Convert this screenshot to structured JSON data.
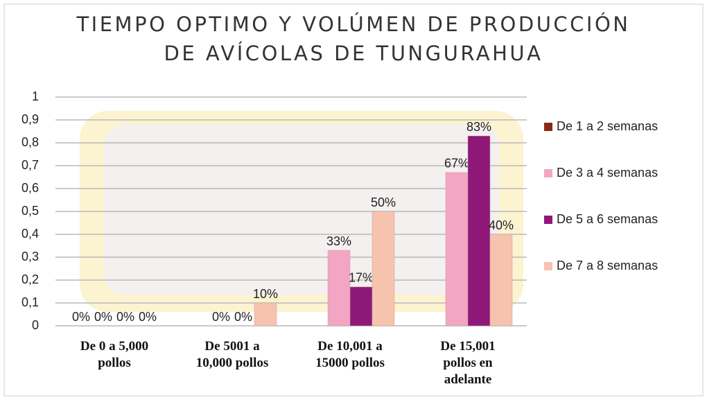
{
  "chart_data": {
    "type": "bar",
    "title": "TIEMPO OPTIMO Y VOLÚMEN DE PRODUCCIÓN\nDE AVÍCOLAS DE TUNGURAHUA",
    "categories": [
      "De 0 a 5,000\npollos",
      "De 5001 a\n10,000 pollos",
      "De  10,001 a\n15000 pollos",
      "De  15,001\npollos en\nadelante"
    ],
    "series": [
      {
        "name": "De 1 a 2 semanas",
        "color": "#8b2a10",
        "values": [
          0,
          0,
          0,
          0
        ],
        "value_labels": [
          "0%",
          null,
          null,
          null
        ]
      },
      {
        "name": "De 3 a 4 semanas",
        "color": "#f2a6c4",
        "values": [
          0,
          0,
          0.33,
          0.67
        ],
        "value_labels": [
          "0%",
          "0%",
          "33%",
          "67%"
        ]
      },
      {
        "name": "De 5 a 6 semanas",
        "color": "#8e1878",
        "values": [
          0,
          0,
          0.17,
          0.83
        ],
        "value_labels": [
          "0%",
          "0%",
          "17%",
          "83%"
        ]
      },
      {
        "name": "De 7 a 8 semanas",
        "color": "#f6c3ae",
        "values": [
          0,
          0.1,
          0.5,
          0.4
        ],
        "value_labels": [
          "0%",
          "10%",
          "50%",
          "40%"
        ]
      }
    ],
    "ylim": [
      0,
      1
    ],
    "yticks": [
      0,
      {
        "value": 0.1,
        "label": "0,1"
      },
      {
        "value": 0.2,
        "label": "0,2"
      },
      {
        "value": 0.3,
        "label": "0,3"
      },
      {
        "value": 0.4,
        "label": "0,4"
      },
      {
        "value": 0.5,
        "label": "0,5"
      },
      {
        "value": 0.6,
        "label": "0,6"
      },
      {
        "value": 0.7,
        "label": "0,7"
      },
      {
        "value": 0.8,
        "label": "0,8"
      },
      {
        "value": 0.9,
        "label": "0,9"
      },
      1
    ],
    "grid": true
  }
}
